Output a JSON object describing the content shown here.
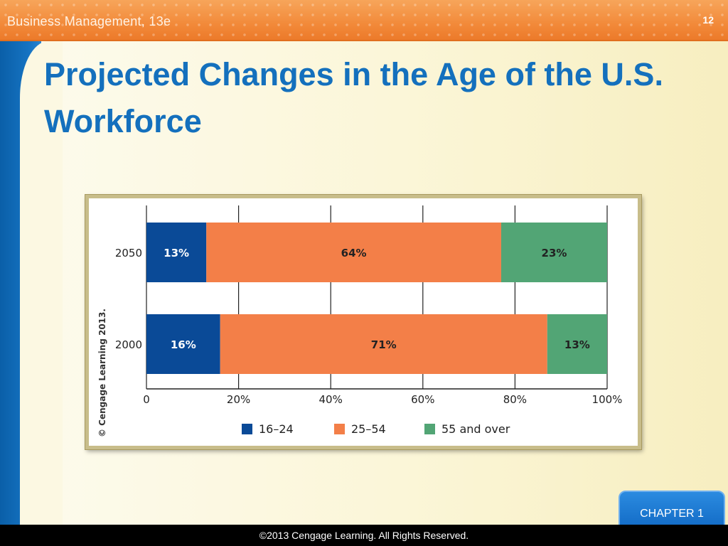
{
  "header": {
    "book_title": "Business Management, 13e",
    "slide_number": "12"
  },
  "slide": {
    "title": "Projected Changes in the Age of the U.S. Workforce"
  },
  "chart_data": {
    "type": "bar",
    "orientation": "horizontal",
    "stacked": true,
    "categories": [
      "2050",
      "2000"
    ],
    "series": [
      {
        "name": "16–24",
        "color": "#0a4a97",
        "values": [
          13,
          16
        ],
        "labels": [
          "13%",
          "16%"
        ]
      },
      {
        "name": "25–54",
        "color": "#f37f48",
        "values": [
          64,
          71
        ],
        "labels": [
          "64%",
          "71%"
        ]
      },
      {
        "name": "55 and over",
        "color": "#52a575",
        "values": [
          23,
          13
        ],
        "labels": [
          "23%",
          "13%"
        ]
      }
    ],
    "xlim": [
      0,
      100
    ],
    "xticks": [
      "0",
      "20%",
      "40%",
      "60%",
      "80%",
      "100%"
    ],
    "grid": true,
    "legend": "bottom",
    "credit": "© Cengage Learning 2013."
  },
  "badge": {
    "chapter_label": "CHAPTER 1"
  },
  "footer": {
    "copyright": "©2013 Cengage Learning. All Rights Reserved."
  }
}
